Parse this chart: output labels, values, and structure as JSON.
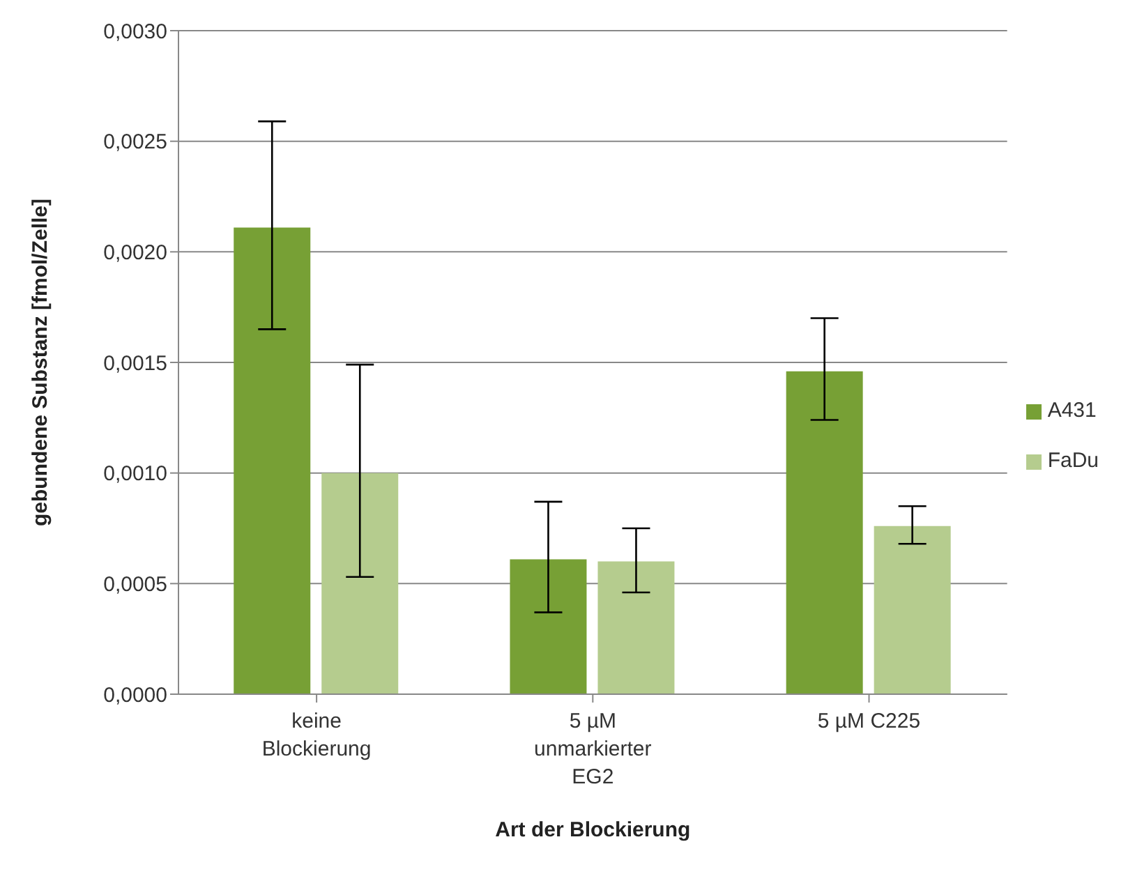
{
  "chart_data": {
    "type": "bar",
    "xlabel": "Art der Blockierung",
    "ylabel": "gebundene Substanz [fmol/Zelle]",
    "categories": [
      "keine Blockierung",
      "5 µM unmarkierter EG2",
      "5 µM C225"
    ],
    "series": [
      {
        "name": "A431",
        "color": "#77a035",
        "values": [
          0.00211,
          0.00061,
          0.00146
        ],
        "errors": [
          [
            0.00165,
            0.00259
          ],
          [
            0.00037,
            0.00087
          ],
          [
            0.00124,
            0.0017
          ]
        ]
      },
      {
        "name": "FaDu",
        "color": "#b5cc8e",
        "values": [
          0.001,
          0.0006,
          0.00076
        ],
        "errors": [
          [
            0.00053,
            0.00149
          ],
          [
            0.00046,
            0.00075
          ],
          [
            0.00068,
            0.00085
          ]
        ]
      }
    ],
    "ylim": [
      0,
      0.003
    ],
    "yticks": [
      {
        "value": 0,
        "label": "0,0000"
      },
      {
        "value": 0.0005,
        "label": "0,0005"
      },
      {
        "value": 0.001,
        "label": "0,0010"
      },
      {
        "value": 0.0015,
        "label": "0,0015"
      },
      {
        "value": 0.002,
        "label": "0,0020"
      },
      {
        "value": 0.0025,
        "label": "0,0025"
      },
      {
        "value": 0.003,
        "label": "0,0030"
      }
    ],
    "grid": "y",
    "legend": "right"
  }
}
